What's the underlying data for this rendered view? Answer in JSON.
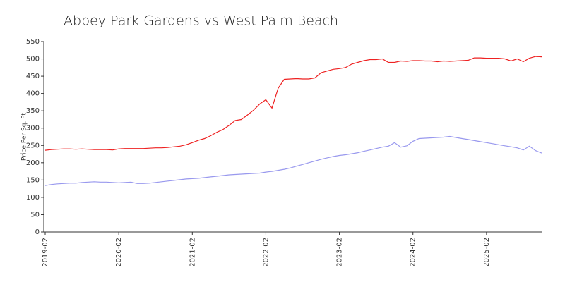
{
  "chart_data": {
    "type": "line",
    "title": "Abbey Park Gardens vs West Palm Beach",
    "ylabel": "Price Per Sq. Ft",
    "categories": [
      "2019-02",
      null,
      null,
      null,
      null,
      null,
      null,
      null,
      null,
      null,
      null,
      null,
      "2020-02",
      null,
      null,
      null,
      null,
      null,
      null,
      null,
      null,
      null,
      null,
      null,
      "2021-02",
      null,
      null,
      null,
      null,
      null,
      null,
      null,
      null,
      null,
      null,
      null,
      "2022-02",
      null,
      null,
      null,
      null,
      null,
      null,
      null,
      null,
      null,
      null,
      null,
      "2023-02",
      null,
      null,
      null,
      null,
      null,
      null,
      null,
      null,
      null,
      null,
      null,
      "2024-02",
      null,
      null,
      null,
      null,
      null,
      null,
      null,
      null,
      null,
      null,
      null,
      "2025-02",
      null,
      null,
      null,
      null,
      null,
      null,
      null,
      null,
      null
    ],
    "series": [
      {
        "color": "#ee2222",
        "values": [
          236,
          238,
          239,
          240,
          240,
          239,
          240,
          239,
          238,
          238,
          238,
          237,
          240,
          241,
          241,
          241,
          241,
          242,
          243,
          243,
          244,
          246,
          248,
          252,
          258,
          265,
          270,
          278,
          288,
          296,
          308,
          322,
          325,
          338,
          352,
          370,
          382,
          358,
          415,
          441,
          442,
          443,
          442,
          442,
          445,
          460,
          465,
          470,
          472,
          475,
          485,
          490,
          495,
          498,
          498,
          500,
          490,
          490,
          494,
          493,
          495,
          495,
          494,
          494,
          492,
          494,
          493,
          494,
          495,
          496,
          503,
          503,
          502,
          502,
          502,
          500,
          494,
          500,
          492,
          502,
          507,
          506
        ]
      },
      {
        "color": "#9999ee",
        "values": [
          134,
          137,
          139,
          140,
          141,
          141,
          143,
          144,
          145,
          144,
          144,
          143,
          142,
          143,
          144,
          140,
          140,
          141,
          143,
          145,
          147,
          149,
          151,
          153,
          154,
          155,
          157,
          159,
          161,
          163,
          165,
          166,
          167,
          168,
          169,
          170,
          173,
          175,
          178,
          181,
          185,
          190,
          195,
          200,
          205,
          210,
          214,
          218,
          221,
          223,
          226,
          229,
          233,
          237,
          241,
          245,
          248,
          258,
          245,
          249,
          262,
          270,
          271,
          272,
          273,
          274,
          276,
          273,
          270,
          267,
          264,
          261,
          258,
          255,
          252,
          249,
          246,
          243,
          237,
          248,
          235,
          228
        ]
      }
    ],
    "ylim": [
      0,
      550
    ],
    "yticks": [
      0,
      50,
      100,
      150,
      200,
      250,
      300,
      350,
      400,
      450,
      500,
      550
    ]
  }
}
